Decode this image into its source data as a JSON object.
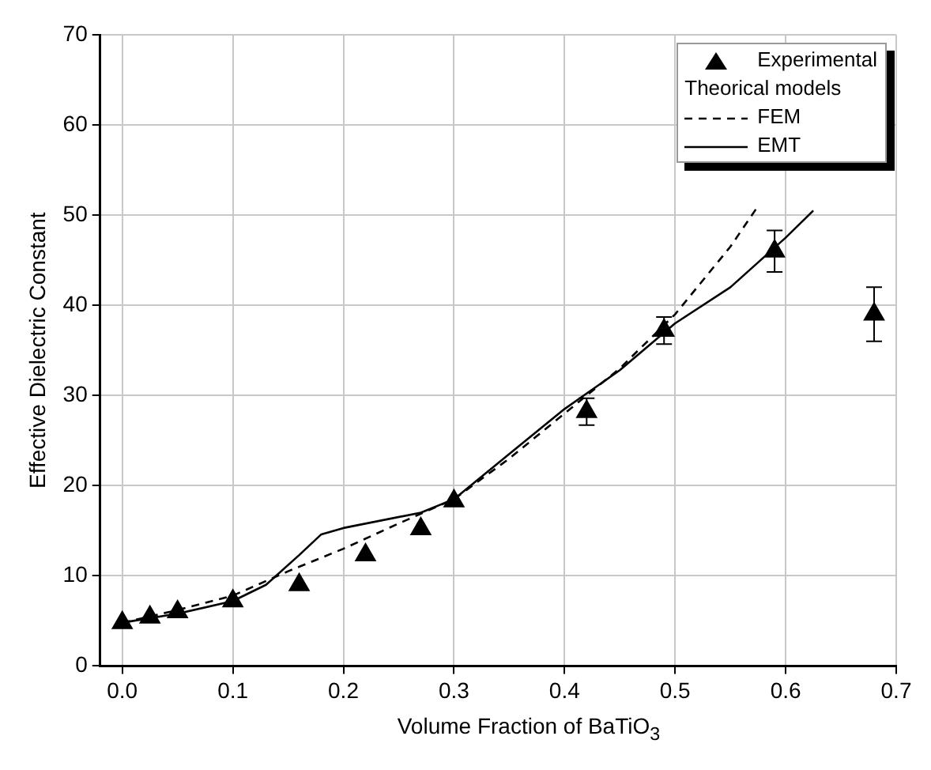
{
  "chart_data": {
    "type": "scatter",
    "xlabel": "Volume Fraction of BaTiO$_{3}$",
    "ylabel": "Effective Dielectric Constant",
    "legend_title": "Theorical models",
    "xlim": [
      -0.02,
      0.7
    ],
    "xticks": [
      {
        "value": 0,
        "label": "0.0"
      },
      0.1,
      0.2,
      0.3,
      0.4,
      0.5,
      0.6,
      0.7
    ],
    "ylim": [
      0,
      70
    ],
    "yticks": [
      0,
      10,
      20,
      30,
      40,
      50,
      60,
      70
    ],
    "grid": true,
    "legend": "top right",
    "series": [
      {
        "name": "Experimental",
        "color": "#000000",
        "marker": "triangle",
        "x": [
          0,
          0.025,
          0.05,
          0.1,
          0.16,
          0.22,
          0.27,
          0.3,
          0.42,
          0.49,
          0.59,
          0.68
        ],
        "values": [
          4.8,
          5.4,
          6,
          7.2,
          9,
          12.3,
          15.2,
          18.3,
          28.2,
          37.2,
          46,
          39
        ],
        "errors": [
          null,
          null,
          null,
          null,
          null,
          null,
          null,
          null,
          1.5,
          1.5,
          2.3,
          3
        ]
      },
      {
        "name": "FEM",
        "type": "line",
        "color": "#000000",
        "line_style": "dashed",
        "marker": "none",
        "x": [
          0,
          0.05,
          0.1,
          0.15,
          0.2,
          0.25,
          0.3,
          0.35,
          0.4,
          0.45,
          0.5,
          0.55,
          0.575
        ],
        "values": [
          4.8,
          6.2,
          7.8,
          10.5,
          13,
          15.8,
          18.5,
          23,
          28,
          33,
          39,
          46.5,
          51
        ]
      },
      {
        "name": "EMT",
        "type": "line",
        "color": "#000000",
        "line_style": "solid",
        "marker": "none",
        "x": [
          0,
          0.05,
          0.1,
          0.13,
          0.16,
          0.18,
          0.2,
          0.27,
          0.3,
          0.35,
          0.4,
          0.45,
          0.5,
          0.55,
          0.6,
          0.625
        ],
        "values": [
          4.8,
          5.8,
          7.2,
          9,
          12.3,
          14.6,
          15.3,
          17,
          18.5,
          23.5,
          28.5,
          32.8,
          38,
          42,
          47.5,
          50.5
        ]
      }
    ]
  }
}
